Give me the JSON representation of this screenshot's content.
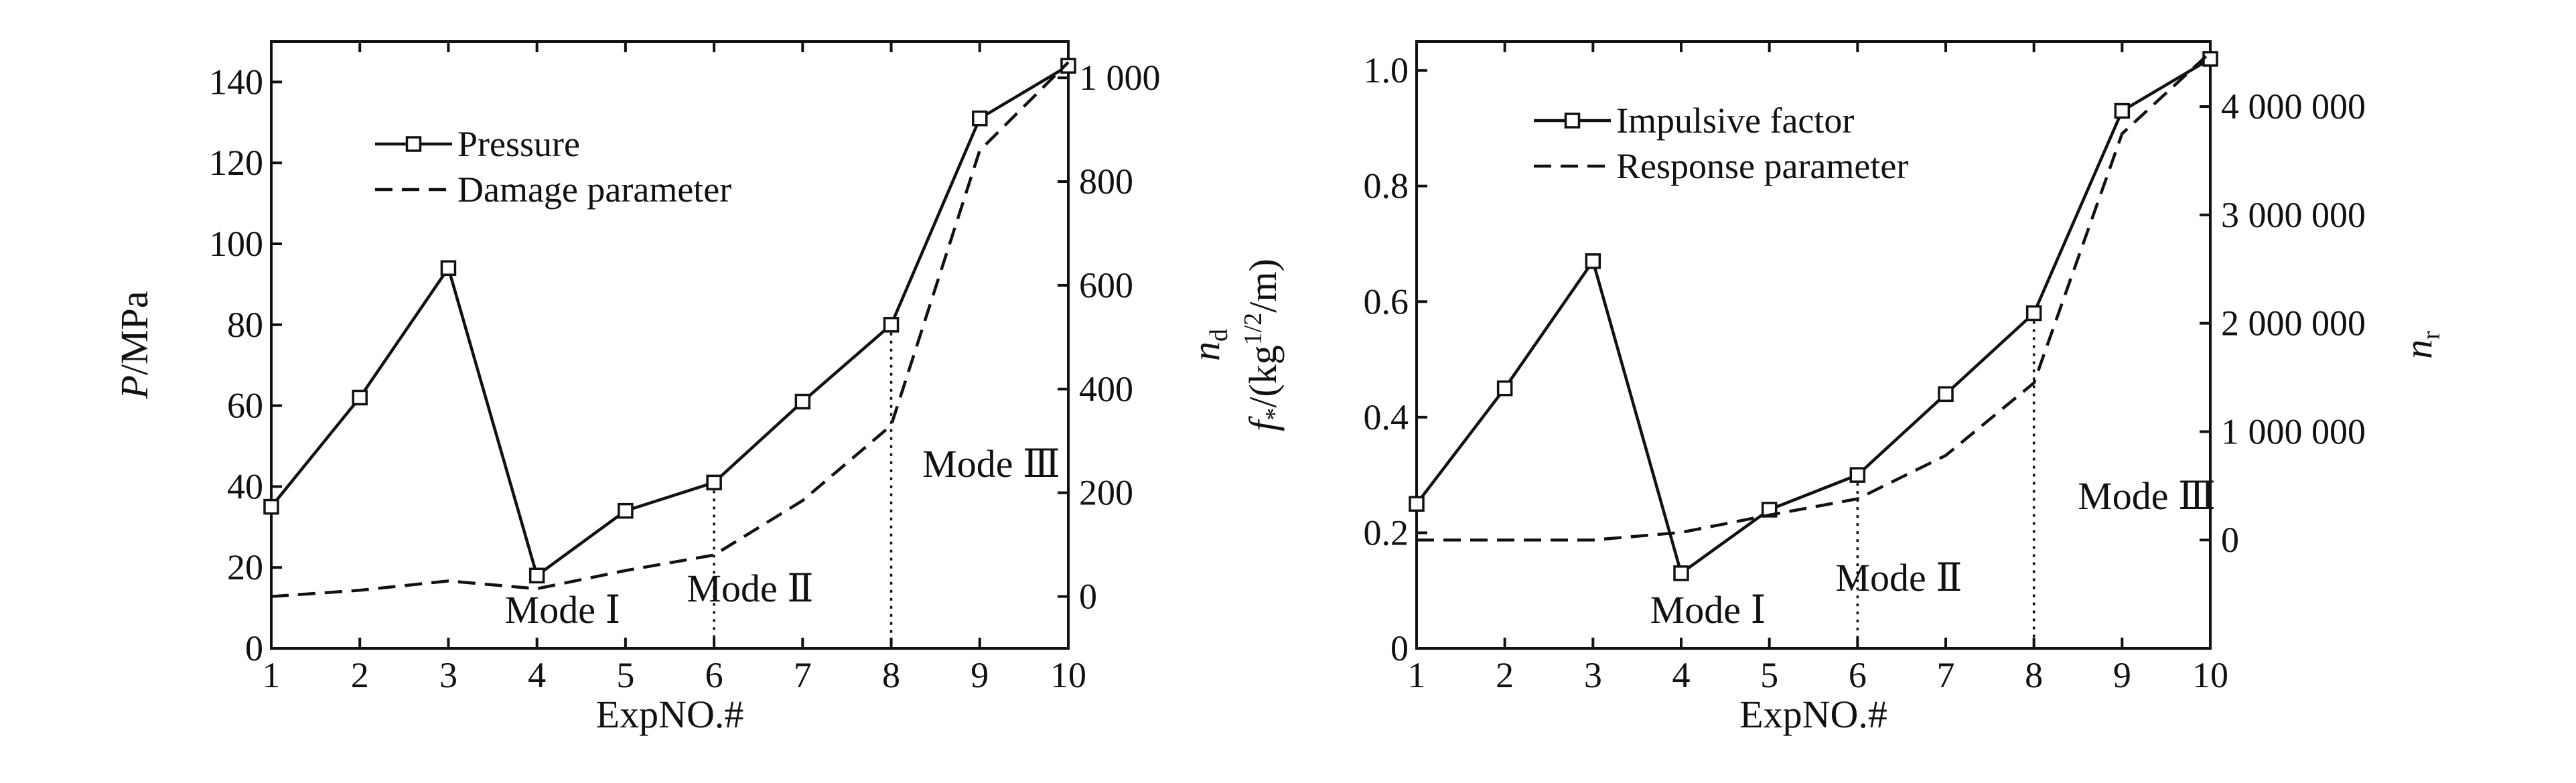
{
  "chart_data": [
    {
      "type": "line",
      "xlabel": "ExpNO.#",
      "ylabel_left": "P/MPa",
      "ylabel_right": "n_d",
      "x": [
        1,
        2,
        3,
        4,
        5,
        6,
        7,
        8,
        9,
        10
      ],
      "xticks": [
        1,
        2,
        3,
        4,
        5,
        6,
        7,
        8,
        9,
        10
      ],
      "xlim": [
        1,
        10
      ],
      "ylim_left": [
        0,
        150
      ],
      "yticks_left": [
        0,
        20,
        40,
        60,
        80,
        100,
        120,
        140
      ],
      "ytick_labels_left": [
        "0",
        "20",
        "40",
        "60",
        "80",
        "100",
        "120",
        "140"
      ],
      "ylim_right": [
        -100,
        1070
      ],
      "yticks_right": [
        0,
        200,
        400,
        600,
        800,
        1000
      ],
      "ytick_labels_right": [
        "0",
        "200",
        "400",
        "600",
        "800",
        "1 000"
      ],
      "series": [
        {
          "name": "Pressure",
          "axis": "left",
          "style": "solid-square-markers",
          "values": [
            35,
            62,
            94,
            18,
            34,
            41,
            61,
            80,
            131,
            144
          ]
        },
        {
          "name": "Damage parameter",
          "axis": "right",
          "style": "dashed",
          "values": [
            0,
            12,
            30,
            15,
            50,
            80,
            185,
            330,
            860,
            1030
          ]
        }
      ],
      "modes": [
        {
          "label": "Mode Ⅰ"
        },
        {
          "label": "Mode Ⅱ",
          "x": 6
        },
        {
          "label": "Mode Ⅲ",
          "x": 8
        }
      ],
      "legend": "upper-left",
      "grid": false
    },
    {
      "type": "line",
      "xlabel": "ExpNO.#",
      "ylabel_left": "f*/(kg^1/2/m)",
      "ylabel_right": "n_r",
      "x": [
        1,
        2,
        3,
        4,
        5,
        6,
        7,
        8,
        9,
        10
      ],
      "xticks": [
        1,
        2,
        3,
        4,
        5,
        6,
        7,
        8,
        9,
        10
      ],
      "xlim": [
        1,
        10
      ],
      "ylim_left": [
        0,
        1.05
      ],
      "yticks_left": [
        0,
        0.2,
        0.4,
        0.6,
        0.8,
        1.0
      ],
      "ytick_labels_left": [
        "0",
        "0.2",
        "0.4",
        "0.6",
        "0.8",
        "1.0"
      ],
      "ylim_right": [
        -1000000,
        4600000
      ],
      "yticks_right": [
        0,
        1000000,
        2000000,
        3000000,
        4000000
      ],
      "ytick_labels_right": [
        "0",
        "1 000 000",
        "2 000 000",
        "3 000 000",
        "4 000 000"
      ],
      "series": [
        {
          "name": "Impulsive factor",
          "axis": "left",
          "style": "solid-square-markers",
          "values": [
            0.25,
            0.45,
            0.67,
            0.13,
            0.24,
            0.3,
            0.44,
            0.58,
            0.93,
            1.02
          ]
        },
        {
          "name": "Response parameter",
          "axis": "right",
          "style": "dashed",
          "values": [
            0,
            0,
            0,
            70000,
            230000,
            380000,
            780000,
            1450000,
            3750000,
            4500000
          ]
        }
      ],
      "modes": [
        {
          "label": "Mode Ⅰ"
        },
        {
          "label": "Mode Ⅱ",
          "x": 6
        },
        {
          "label": "Mode Ⅲ",
          "x": 8
        }
      ],
      "legend": "upper-left",
      "grid": false
    }
  ]
}
